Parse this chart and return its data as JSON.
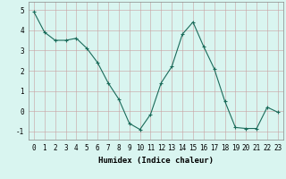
{
  "x": [
    0,
    1,
    2,
    3,
    4,
    5,
    6,
    7,
    8,
    9,
    10,
    11,
    12,
    13,
    14,
    15,
    16,
    17,
    18,
    19,
    20,
    21,
    22,
    23
  ],
  "y": [
    4.9,
    3.9,
    3.5,
    3.5,
    3.6,
    3.1,
    2.4,
    1.4,
    0.6,
    -0.6,
    -0.9,
    -0.15,
    1.4,
    2.2,
    3.8,
    4.4,
    3.2,
    2.1,
    0.5,
    -0.8,
    -0.85,
    -0.85,
    0.2,
    -0.05
  ],
  "line_color": "#1a6b5a",
  "marker": "+",
  "marker_size": 3,
  "bg_color": "#d9f5f0",
  "grid_color": "#c8a0a0",
  "xlabel": "Humidex (Indice chaleur)",
  "xlim": [
    -0.5,
    23.5
  ],
  "ylim": [
    -1.4,
    5.4
  ],
  "yticks": [
    -1,
    0,
    1,
    2,
    3,
    4,
    5
  ],
  "xticks": [
    0,
    1,
    2,
    3,
    4,
    5,
    6,
    7,
    8,
    9,
    10,
    11,
    12,
    13,
    14,
    15,
    16,
    17,
    18,
    19,
    20,
    21,
    22,
    23
  ],
  "xtick_labels": [
    "0",
    "1",
    "2",
    "3",
    "4",
    "5",
    "6",
    "7",
    "8",
    "9",
    "10",
    "11",
    "12",
    "13",
    "14",
    "15",
    "16",
    "17",
    "18",
    "19",
    "20",
    "21",
    "22",
    "23"
  ],
  "xlabel_fontsize": 6.5,
  "tick_fontsize": 5.5
}
